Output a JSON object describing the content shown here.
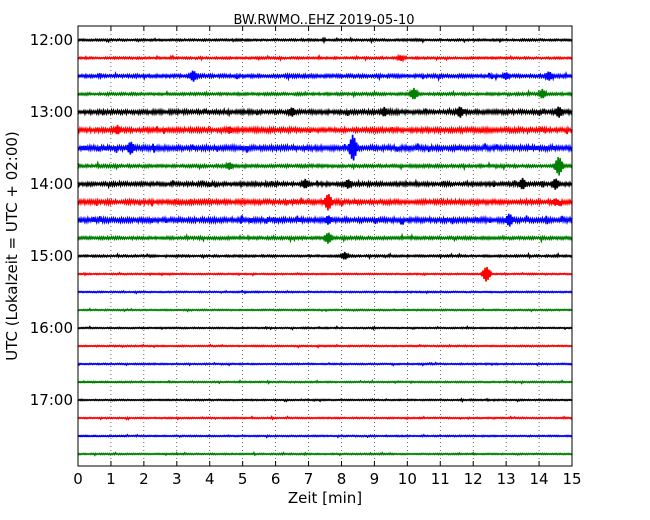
{
  "chart_data": {
    "type": "line",
    "title": "BW.RWMO..EHZ 2019-05-10",
    "xlabel": "Zeit  [min]",
    "ylabel": "UTC (Lokalzeit = UTC + 02:00)",
    "xlim": [
      0,
      15
    ],
    "x_ticks": [
      "0",
      "1",
      "2",
      "3",
      "4",
      "5",
      "6",
      "7",
      "8",
      "9",
      "10",
      "11",
      "12",
      "13",
      "14",
      "15"
    ],
    "y_ticks": [
      "12:00",
      "13:00",
      "14:00",
      "15:00",
      "16:00",
      "17:00"
    ],
    "grid": "vertical dotted",
    "trace_colors": [
      "#000000",
      "#ff0000",
      "#0000ff",
      "#008000"
    ],
    "traces": [
      {
        "start": "12:00",
        "amplitude": 0.6
      },
      {
        "start": "12:15",
        "amplitude": 0.6
      },
      {
        "start": "12:30",
        "amplitude": 1.0
      },
      {
        "start": "12:45",
        "amplitude": 0.8
      },
      {
        "start": "13:00",
        "amplitude": 1.3
      },
      {
        "start": "13:15",
        "amplitude": 1.4
      },
      {
        "start": "13:30",
        "amplitude": 1.6
      },
      {
        "start": "13:45",
        "amplitude": 0.9
      },
      {
        "start": "14:00",
        "amplitude": 1.2
      },
      {
        "start": "14:15",
        "amplitude": 1.4
      },
      {
        "start": "14:30",
        "amplitude": 1.5
      },
      {
        "start": "14:45",
        "amplitude": 0.9
      },
      {
        "start": "15:00",
        "amplitude": 0.6
      },
      {
        "start": "15:15",
        "amplitude": 0.4
      },
      {
        "start": "15:30",
        "amplitude": 0.4
      },
      {
        "start": "15:45",
        "amplitude": 0.4
      },
      {
        "start": "16:00",
        "amplitude": 0.4
      },
      {
        "start": "16:15",
        "amplitude": 0.4
      },
      {
        "start": "16:30",
        "amplitude": 0.4
      },
      {
        "start": "16:45",
        "amplitude": 0.4
      },
      {
        "start": "17:00",
        "amplitude": 0.4
      },
      {
        "start": "17:15",
        "amplitude": 0.4
      },
      {
        "start": "17:30",
        "amplitude": 0.4
      },
      {
        "start": "17:45",
        "amplitude": 0.4
      }
    ],
    "events": [
      {
        "trace": "12:15",
        "minute": 9.8,
        "size": 3
      },
      {
        "trace": "12:30",
        "minute": 3.5,
        "size": 6
      },
      {
        "trace": "12:30",
        "minute": 13.0,
        "size": 4
      },
      {
        "trace": "12:30",
        "minute": 14.3,
        "size": 5
      },
      {
        "trace": "12:45",
        "minute": 10.2,
        "size": 6
      },
      {
        "trace": "12:45",
        "minute": 14.1,
        "size": 5
      },
      {
        "trace": "13:00",
        "minute": 6.5,
        "size": 5
      },
      {
        "trace": "13:00",
        "minute": 9.3,
        "size": 5
      },
      {
        "trace": "13:00",
        "minute": 11.6,
        "size": 6
      },
      {
        "trace": "13:00",
        "minute": 14.6,
        "size": 6
      },
      {
        "trace": "13:15",
        "minute": 1.2,
        "size": 5
      },
      {
        "trace": "13:15",
        "minute": 4.6,
        "size": 4
      },
      {
        "trace": "13:30",
        "minute": 1.6,
        "size": 7
      },
      {
        "trace": "13:30",
        "minute": 8.35,
        "size": 14
      },
      {
        "trace": "13:45",
        "minute": 4.6,
        "size": 4
      },
      {
        "trace": "13:45",
        "minute": 14.6,
        "size": 10
      },
      {
        "trace": "14:00",
        "minute": 6.9,
        "size": 5
      },
      {
        "trace": "14:00",
        "minute": 8.2,
        "size": 5
      },
      {
        "trace": "14:00",
        "minute": 13.5,
        "size": 6
      },
      {
        "trace": "14:00",
        "minute": 14.5,
        "size": 6
      },
      {
        "trace": "14:15",
        "minute": 7.6,
        "size": 9
      },
      {
        "trace": "14:15",
        "minute": 14.5,
        "size": 4
      },
      {
        "trace": "14:30",
        "minute": 7.6,
        "size": 5
      },
      {
        "trace": "14:30",
        "minute": 13.1,
        "size": 7
      },
      {
        "trace": "14:45",
        "minute": 7.6,
        "size": 6
      },
      {
        "trace": "15:00",
        "minute": 8.1,
        "size": 4
      },
      {
        "trace": "15:15",
        "minute": 12.4,
        "size": 8
      }
    ]
  }
}
